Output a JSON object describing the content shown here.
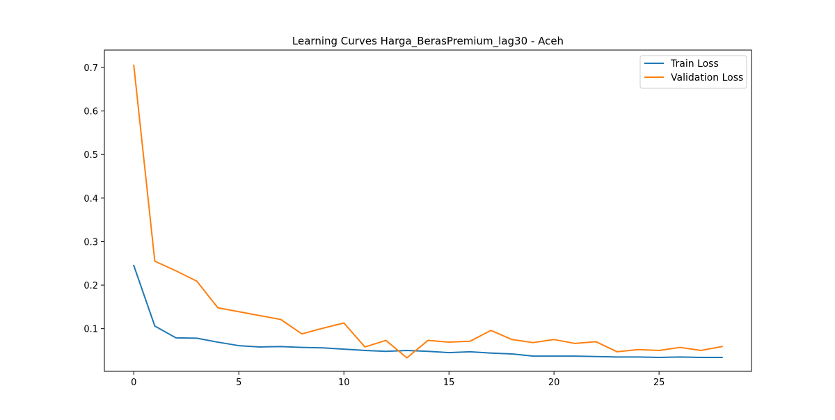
{
  "chart_data": {
    "type": "line",
    "title": "Learning Curves Harga_BerasPremium_lag30 - Aceh",
    "xlabel": "",
    "ylabel": "",
    "xlim": [
      -1.4,
      29.4
    ],
    "ylim": [
      0.002,
      0.74
    ],
    "xticks": [
      0,
      5,
      10,
      15,
      20,
      25
    ],
    "yticks": [
      0.1,
      0.2,
      0.3,
      0.4,
      0.5,
      0.6,
      0.7
    ],
    "xtick_labels": [
      "0",
      "5",
      "10",
      "15",
      "20",
      "25"
    ],
    "ytick_labels": [
      "0.1",
      "0.2",
      "0.3",
      "0.4",
      "0.5",
      "0.6",
      "0.7"
    ],
    "grid": false,
    "legend_position": "top-right",
    "x": [
      0,
      1,
      2,
      3,
      4,
      5,
      6,
      7,
      8,
      9,
      10,
      11,
      12,
      13,
      14,
      15,
      16,
      17,
      18,
      19,
      20,
      21,
      22,
      23,
      24,
      25,
      26,
      27,
      28
    ],
    "series": [
      {
        "name": "Train Loss",
        "color": "#1f77b4",
        "values": [
          0.245,
          0.106,
          0.079,
          0.078,
          0.069,
          0.061,
          0.058,
          0.059,
          0.057,
          0.056,
          0.053,
          0.05,
          0.048,
          0.05,
          0.048,
          0.045,
          0.047,
          0.044,
          0.042,
          0.037,
          0.037,
          0.037,
          0.036,
          0.035,
          0.035,
          0.034,
          0.035,
          0.034,
          0.034
        ]
      },
      {
        "name": "Validation Loss",
        "color": "#ff7f0e",
        "values": [
          0.705,
          0.255,
          0.233,
          0.209,
          0.148,
          0.139,
          0.13,
          0.121,
          0.088,
          0.101,
          0.113,
          0.058,
          0.073,
          0.033,
          0.073,
          0.069,
          0.071,
          0.096,
          0.075,
          0.068,
          0.075,
          0.066,
          0.07,
          0.047,
          0.052,
          0.05,
          0.057,
          0.05,
          0.059
        ]
      }
    ]
  }
}
